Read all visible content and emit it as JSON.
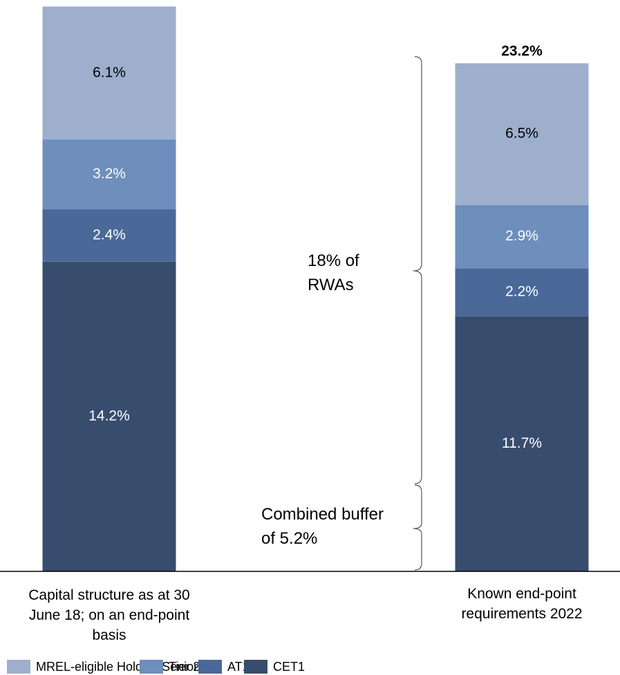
{
  "chart_data": {
    "type": "stacked_bar",
    "categories": [
      "Capital structure as at 30 June 18; on an end-point basis",
      "Known end-point requirements 2022"
    ],
    "series": [
      {
        "name": "MREL-eligible HoldCo Senior",
        "color": "#9dafcc",
        "values": [
          6.1,
          6.5
        ],
        "value_labels": [
          "6.1%",
          "6.5%"
        ]
      },
      {
        "name": "Tier 2",
        "color": "#6e8ebb",
        "values": [
          3.2,
          2.9
        ],
        "value_labels": [
          "3.2%",
          "2.9%"
        ]
      },
      {
        "name": "AT1",
        "color": "#4a6898",
        "values": [
          2.4,
          2.2
        ],
        "value_labels": [
          "2.4%",
          "2.2%"
        ]
      },
      {
        "name": "CET1",
        "color": "#384d6e",
        "values": [
          14.2,
          11.7
        ],
        "value_labels": [
          "14.2%",
          "11.7%"
        ]
      }
    ],
    "ylim": [
      0,
      26.2
    ],
    "annotations": {
      "total": "23.2%",
      "rwa": "18% of RWAs",
      "buffer": "Combined buffer of 5.2%"
    }
  }
}
